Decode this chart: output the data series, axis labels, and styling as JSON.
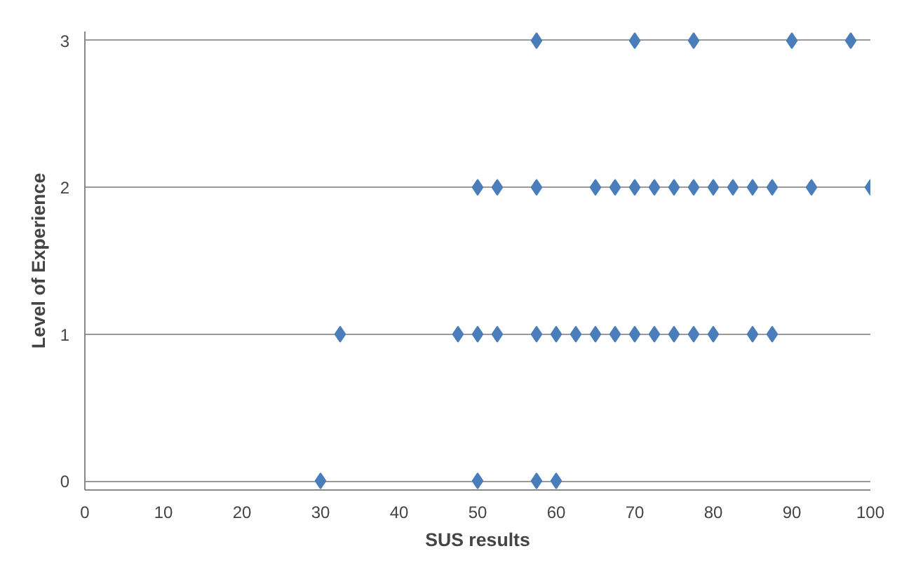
{
  "chart_data": {
    "type": "scatter",
    "xlabel": "SUS results",
    "ylabel": "Level of Experience",
    "x": [
      57.5,
      70,
      77.5,
      90,
      97.5,
      50,
      52.5,
      57.5,
      65,
      67.5,
      70,
      72.5,
      75,
      77.5,
      80,
      82.5,
      85,
      87.5,
      92.5,
      100,
      32.5,
      47.5,
      50,
      52.5,
      57.5,
      60,
      62.5,
      65,
      67.5,
      70,
      72.5,
      75,
      77.5,
      80,
      85,
      87.5,
      30,
      50,
      57.5,
      60
    ],
    "series": [
      {
        "color": "#4a7ebb",
        "values": [
          3,
          3,
          3,
          3,
          3,
          2,
          2,
          2,
          2,
          2,
          2,
          2,
          2,
          2,
          2,
          2,
          2,
          2,
          2,
          2,
          1,
          1,
          1,
          1,
          1,
          1,
          1,
          1,
          1,
          1,
          1,
          1,
          1,
          1,
          1,
          1,
          0,
          0,
          0,
          0
        ]
      }
    ],
    "xlim": [
      0,
      100
    ],
    "xticks": [
      0,
      10,
      20,
      30,
      40,
      50,
      60,
      70,
      80,
      90,
      100
    ],
    "ylim": [
      0,
      3
    ],
    "yticks": [
      0,
      1,
      2,
      3
    ],
    "grid": "y",
    "marker": "diamond"
  }
}
